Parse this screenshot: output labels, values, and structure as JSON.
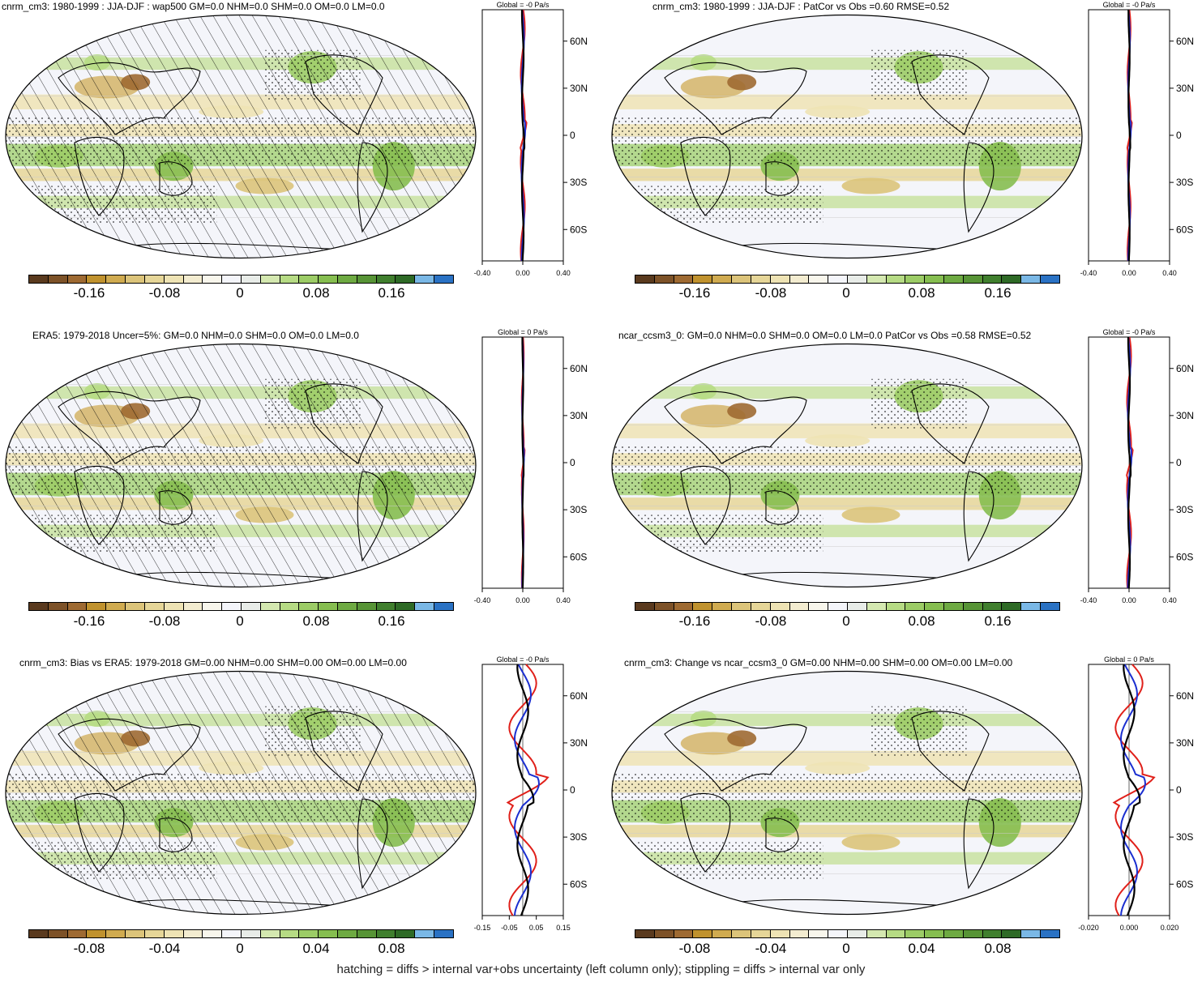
{
  "panels": [
    {
      "id": "p1",
      "title": "cnrm_cm3: 1980-1999 : JJA-DJF : wap500 GM=0.0 NHM=0.0 SHM=0.0 OM=0.0 LM=0.0",
      "profile_title": "Global = -0 Pa/s",
      "cb_labels": [
        "-0.16",
        "-0.08",
        "0",
        "0.08",
        "0.16"
      ],
      "x_ticks": [
        "-0.40",
        "0.00",
        "0.40"
      ],
      "hatch": true,
      "stipple": true
    },
    {
      "id": "p2",
      "title": "cnrm_cm3: 1980-1999 : JJA-DJF : PatCor vs Obs =0.60 RMSE=0.52",
      "profile_title": "Global = -0 Pa/s",
      "cb_labels": [
        "-0.16",
        "-0.08",
        "0",
        "0.08",
        "0.16"
      ],
      "x_ticks": [
        "-0.40",
        "0.00",
        "0.40"
      ],
      "hatch": false,
      "stipple": true
    },
    {
      "id": "p3",
      "title": "ERA5: 1979-2018 Uncer=5%: GM=0.0 NHM=0.0 SHM=0.0 OM=0.0 LM=0.0",
      "profile_title": "Global = 0 Pa/s",
      "cb_labels": [
        "-0.16",
        "-0.08",
        "0",
        "0.08",
        "0.16"
      ],
      "x_ticks": [
        "-0.40",
        "0.00",
        "0.40"
      ],
      "hatch": true,
      "stipple": true
    },
    {
      "id": "p4",
      "title": "ncar_ccsm3_0: GM=0.0 NHM=0.0 SHM=0.0 OM=0.0 LM=0.0 PatCor vs Obs =0.58 RMSE=0.52",
      "profile_title": "Global = -0 Pa/s",
      "cb_labels": [
        "-0.16",
        "-0.08",
        "0",
        "0.08",
        "0.16"
      ],
      "x_ticks": [
        "-0.40",
        "0.00",
        "0.40"
      ],
      "hatch": false,
      "stipple": true
    },
    {
      "id": "p5",
      "title": "cnrm_cm3: Bias vs ERA5: 1979-2018 GM=0.00 NHM=0.00 SHM=0.00 OM=0.00 LM=0.00",
      "profile_title": "Global = -0 Pa/s",
      "cb_labels": [
        "-0.08",
        "-0.04",
        "0",
        "0.04",
        "0.08"
      ],
      "x_ticks": [
        "-0.15",
        "-0.05",
        "0.05",
        "0.15"
      ],
      "hatch": true,
      "stipple": true
    },
    {
      "id": "p6",
      "title": "cnrm_cm3: Change vs ncar_ccsm3_0 GM=0.00 NHM=0.00 SHM=0.00 OM=0.00 LM=0.00",
      "profile_title": "Global = 0 Pa/s",
      "cb_labels": [
        "-0.08",
        "-0.04",
        "0",
        "0.04",
        "0.08"
      ],
      "x_ticks": [
        "-0.020",
        "0.000",
        "0.020"
      ],
      "hatch": false,
      "stipple": true
    }
  ],
  "lat_labels": [
    "60N",
    "30N",
    "0",
    "30S",
    "60S"
  ],
  "colors": [
    "#5a3a1e",
    "#7d5228",
    "#9e6a32",
    "#c0922e",
    "#d0ab50",
    "#dcc47a",
    "#e6d698",
    "#eee3b4",
    "#f3ecd0",
    "#f8f6ec",
    "#f4f5fa",
    "#e8ece8",
    "#d4e8b0",
    "#b6db84",
    "#9ccc66",
    "#86be50",
    "#6eaa42",
    "#579436",
    "#407f2e",
    "#2e6a26",
    "#7ab8e6",
    "#2a72c4"
  ],
  "series_colors": {
    "model": "#e0201a",
    "obs": "#1a2ed0",
    "mean": "#000000"
  },
  "footer": "hatching = diffs > internal var+obs uncertainty (left column only); stippling = diffs > internal var only"
}
